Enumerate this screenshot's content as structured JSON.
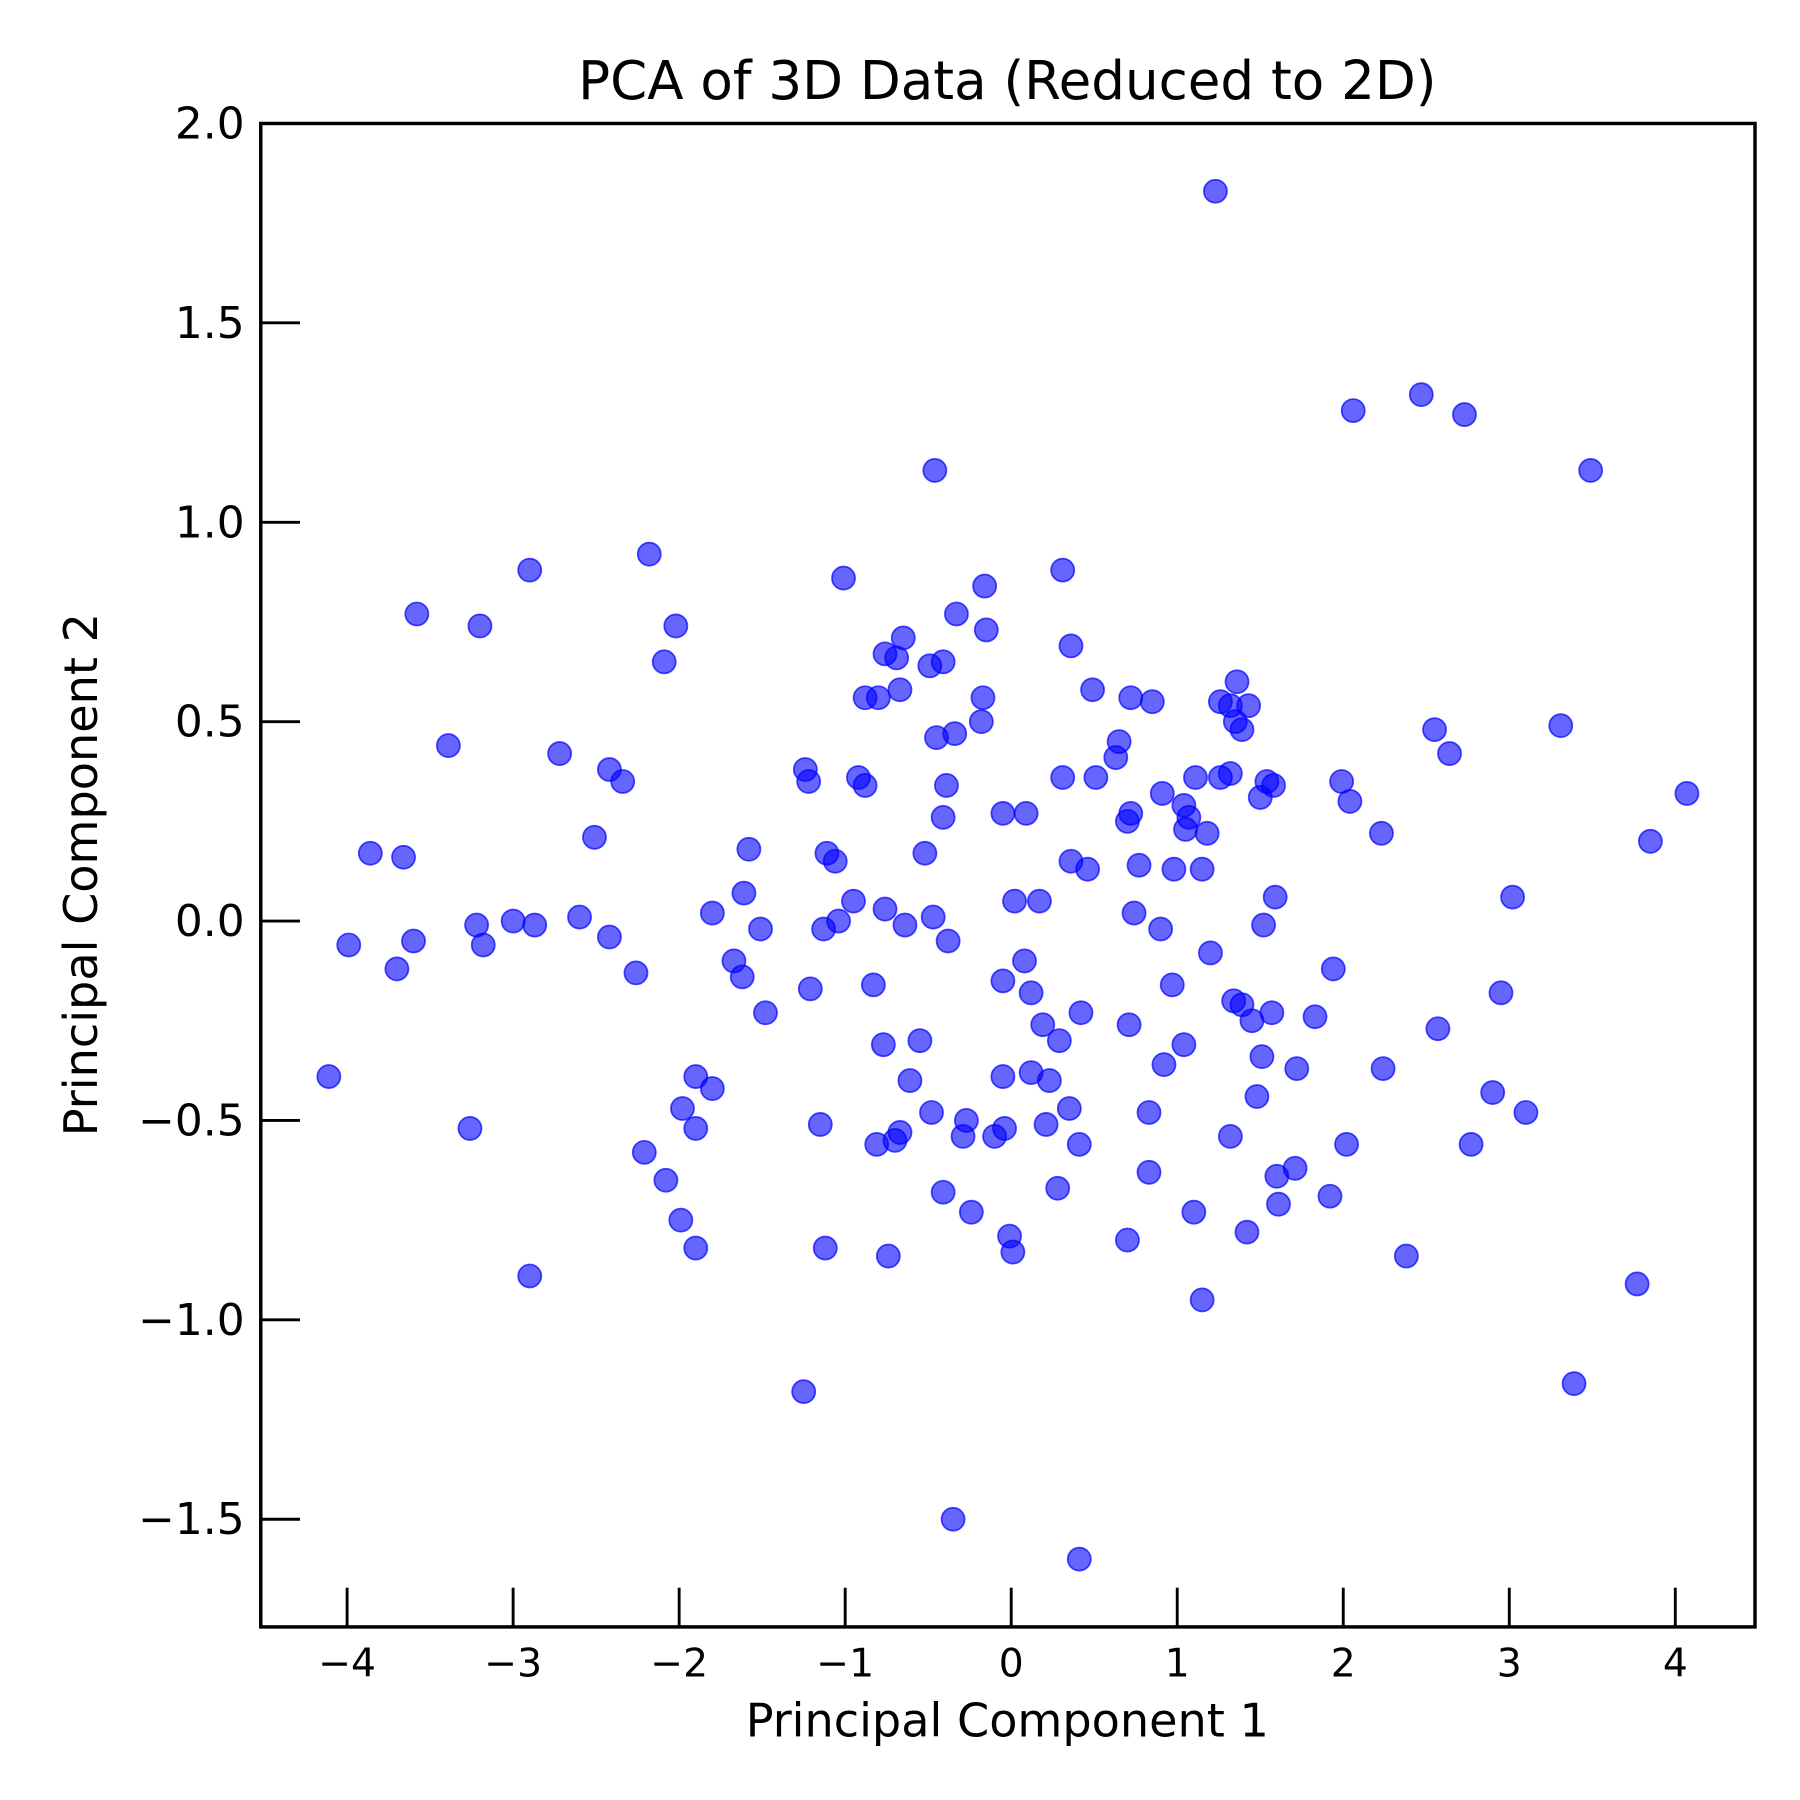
{
  "chart_data": {
    "type": "scatter",
    "title": "PCA of 3D Data (Reduced to 2D)",
    "xlabel": "Principal Component 1",
    "ylabel": "Principal Component 2",
    "xlim": [
      -4.52,
      4.48
    ],
    "ylim": [
      -1.77,
      2.0
    ],
    "xticks": [
      -4,
      -3,
      -2,
      -1,
      0,
      1,
      2,
      3,
      4
    ],
    "xtick_labels": [
      "−4",
      "−3",
      "−2",
      "−1",
      "0",
      "1",
      "2",
      "3",
      "4"
    ],
    "yticks": [
      2.0,
      1.5,
      1.0,
      0.5,
      0.0,
      -0.5,
      -1.0,
      -1.5
    ],
    "ytick_labels": [
      "2.0",
      "1.5",
      "1.0",
      "0.5",
      "0.0",
      "−0.5",
      "−1.0",
      "−1.5"
    ],
    "grid": false,
    "marker_color": "#0000ff",
    "marker_alpha": 0.6,
    "points": [
      [
        1.23,
        1.83
      ],
      [
        2.06,
        1.28
      ],
      [
        2.47,
        1.32
      ],
      [
        2.73,
        1.27
      ],
      [
        3.49,
        1.13
      ],
      [
        -0.46,
        1.13
      ],
      [
        -2.18,
        0.92
      ],
      [
        -2.9,
        0.88
      ],
      [
        -1.01,
        0.86
      ],
      [
        0.31,
        0.88
      ],
      [
        -0.16,
        0.84
      ],
      [
        -3.58,
        0.77
      ],
      [
        -3.2,
        0.74
      ],
      [
        -2.02,
        0.74
      ],
      [
        -0.33,
        0.77
      ],
      [
        -0.15,
        0.73
      ],
      [
        -2.09,
        0.65
      ],
      [
        -0.65,
        0.71
      ],
      [
        0.36,
        0.69
      ],
      [
        -0.76,
        0.67
      ],
      [
        -0.69,
        0.66
      ],
      [
        -0.49,
        0.64
      ],
      [
        -0.41,
        0.65
      ],
      [
        -0.67,
        0.58
      ],
      [
        -0.88,
        0.56
      ],
      [
        -0.8,
        0.56
      ],
      [
        -0.17,
        0.56
      ],
      [
        0.49,
        0.58
      ],
      [
        0.72,
        0.56
      ],
      [
        0.85,
        0.55
      ],
      [
        1.36,
        0.6
      ],
      [
        1.26,
        0.55
      ],
      [
        1.32,
        0.54
      ],
      [
        1.43,
        0.54
      ],
      [
        1.35,
        0.5
      ],
      [
        1.39,
        0.48
      ],
      [
        2.55,
        0.48
      ],
      [
        3.31,
        0.49
      ],
      [
        2.64,
        0.42
      ],
      [
        -0.18,
        0.5
      ],
      [
        -0.34,
        0.47
      ],
      [
        -0.45,
        0.46
      ],
      [
        0.65,
        0.45
      ],
      [
        0.63,
        0.41
      ],
      [
        -3.39,
        0.44
      ],
      [
        -2.72,
        0.42
      ],
      [
        -2.42,
        0.38
      ],
      [
        -2.34,
        0.35
      ],
      [
        -1.24,
        0.38
      ],
      [
        -1.22,
        0.35
      ],
      [
        -0.92,
        0.36
      ],
      [
        -0.88,
        0.34
      ],
      [
        -0.39,
        0.34
      ],
      [
        0.31,
        0.36
      ],
      [
        0.51,
        0.36
      ],
      [
        1.11,
        0.36
      ],
      [
        1.26,
        0.36
      ],
      [
        1.32,
        0.37
      ],
      [
        1.54,
        0.35
      ],
      [
        1.58,
        0.34
      ],
      [
        1.5,
        0.31
      ],
      [
        0.91,
        0.32
      ],
      [
        1.99,
        0.35
      ],
      [
        2.04,
        0.3
      ],
      [
        4.07,
        0.32
      ],
      [
        -0.05,
        0.27
      ],
      [
        0.09,
        0.27
      ],
      [
        -0.41,
        0.26
      ],
      [
        0.72,
        0.27
      ],
      [
        0.7,
        0.25
      ],
      [
        1.04,
        0.29
      ],
      [
        1.07,
        0.26
      ],
      [
        1.05,
        0.23
      ],
      [
        1.18,
        0.22
      ],
      [
        2.23,
        0.22
      ],
      [
        -2.51,
        0.21
      ],
      [
        3.85,
        0.2
      ],
      [
        -3.86,
        0.17
      ],
      [
        -3.66,
        0.16
      ],
      [
        -1.58,
        0.18
      ],
      [
        -1.11,
        0.17
      ],
      [
        -1.06,
        0.15
      ],
      [
        -0.52,
        0.17
      ],
      [
        0.36,
        0.15
      ],
      [
        0.46,
        0.13
      ],
      [
        0.77,
        0.14
      ],
      [
        0.98,
        0.13
      ],
      [
        1.15,
        0.13
      ],
      [
        -1.61,
        0.07
      ],
      [
        -0.95,
        0.05
      ],
      [
        0.02,
        0.05
      ],
      [
        0.17,
        0.05
      ],
      [
        1.59,
        0.06
      ],
      [
        3.02,
        0.06
      ],
      [
        -1.8,
        0.02
      ],
      [
        -0.76,
        0.03
      ],
      [
        -1.04,
        0.0
      ],
      [
        -0.47,
        0.01
      ],
      [
        0.74,
        0.02
      ],
      [
        -3.0,
        0.0
      ],
      [
        -2.87,
        -0.01
      ],
      [
        -2.6,
        0.01
      ],
      [
        -3.22,
        -0.01
      ],
      [
        -1.13,
        -0.02
      ],
      [
        -0.64,
        -0.01
      ],
      [
        -1.51,
        -0.02
      ],
      [
        0.9,
        -0.02
      ],
      [
        1.52,
        -0.01
      ],
      [
        -3.99,
        -0.06
      ],
      [
        -3.6,
        -0.05
      ],
      [
        -3.18,
        -0.06
      ],
      [
        -2.42,
        -0.04
      ],
      [
        -0.38,
        -0.05
      ],
      [
        -3.7,
        -0.12
      ],
      [
        -2.26,
        -0.13
      ],
      [
        -1.67,
        -0.1
      ],
      [
        -1.62,
        -0.14
      ],
      [
        0.08,
        -0.1
      ],
      [
        1.2,
        -0.08
      ],
      [
        1.94,
        -0.12
      ],
      [
        -0.05,
        -0.15
      ],
      [
        -0.83,
        -0.16
      ],
      [
        -1.21,
        -0.17
      ],
      [
        0.12,
        -0.18
      ],
      [
        0.97,
        -0.16
      ],
      [
        2.95,
        -0.18
      ],
      [
        -1.48,
        -0.23
      ],
      [
        0.42,
        -0.23
      ],
      [
        1.34,
        -0.2
      ],
      [
        1.39,
        -0.21
      ],
      [
        1.57,
        -0.23
      ],
      [
        1.45,
        -0.25
      ],
      [
        1.83,
        -0.24
      ],
      [
        0.19,
        -0.26
      ],
      [
        0.71,
        -0.26
      ],
      [
        2.57,
        -0.27
      ],
      [
        -0.77,
        -0.31
      ],
      [
        -0.55,
        -0.3
      ],
      [
        0.29,
        -0.3
      ],
      [
        1.04,
        -0.31
      ],
      [
        1.51,
        -0.34
      ],
      [
        0.92,
        -0.36
      ],
      [
        1.72,
        -0.37
      ],
      [
        2.24,
        -0.37
      ],
      [
        -4.11,
        -0.39
      ],
      [
        -1.9,
        -0.39
      ],
      [
        -1.8,
        -0.42
      ],
      [
        -0.61,
        -0.4
      ],
      [
        -0.05,
        -0.39
      ],
      [
        0.12,
        -0.38
      ],
      [
        0.23,
        -0.4
      ],
      [
        1.48,
        -0.44
      ],
      [
        2.9,
        -0.43
      ],
      [
        -1.98,
        -0.47
      ],
      [
        0.35,
        -0.47
      ],
      [
        -0.48,
        -0.48
      ],
      [
        0.83,
        -0.48
      ],
      [
        3.1,
        -0.48
      ],
      [
        -3.26,
        -0.52
      ],
      [
        -1.9,
        -0.52
      ],
      [
        -1.15,
        -0.51
      ],
      [
        -0.27,
        -0.5
      ],
      [
        -0.04,
        -0.52
      ],
      [
        -0.1,
        -0.54
      ],
      [
        -0.29,
        -0.54
      ],
      [
        0.21,
        -0.51
      ],
      [
        -0.67,
        -0.53
      ],
      [
        -0.7,
        -0.55
      ],
      [
        -0.81,
        -0.56
      ],
      [
        0.41,
        -0.56
      ],
      [
        1.32,
        -0.54
      ],
      [
        2.02,
        -0.56
      ],
      [
        2.77,
        -0.56
      ],
      [
        -2.21,
        -0.58
      ],
      [
        -2.08,
        -0.65
      ],
      [
        1.6,
        -0.64
      ],
      [
        1.71,
        -0.62
      ],
      [
        0.83,
        -0.63
      ],
      [
        0.28,
        -0.67
      ],
      [
        -0.41,
        -0.68
      ],
      [
        1.92,
        -0.69
      ],
      [
        -0.24,
        -0.73
      ],
      [
        1.1,
        -0.73
      ],
      [
        1.61,
        -0.71
      ],
      [
        -1.99,
        -0.75
      ],
      [
        -0.01,
        -0.79
      ],
      [
        0.7,
        -0.8
      ],
      [
        1.42,
        -0.78
      ],
      [
        -1.9,
        -0.82
      ],
      [
        -1.12,
        -0.82
      ],
      [
        0.01,
        -0.83
      ],
      [
        -0.74,
        -0.84
      ],
      [
        2.38,
        -0.84
      ],
      [
        -2.9,
        -0.89
      ],
      [
        3.77,
        -0.91
      ],
      [
        1.15,
        -0.95
      ],
      [
        -1.25,
        -1.18
      ],
      [
        3.39,
        -1.16
      ],
      [
        -0.35,
        -1.5
      ],
      [
        0.41,
        -1.6
      ]
    ]
  }
}
